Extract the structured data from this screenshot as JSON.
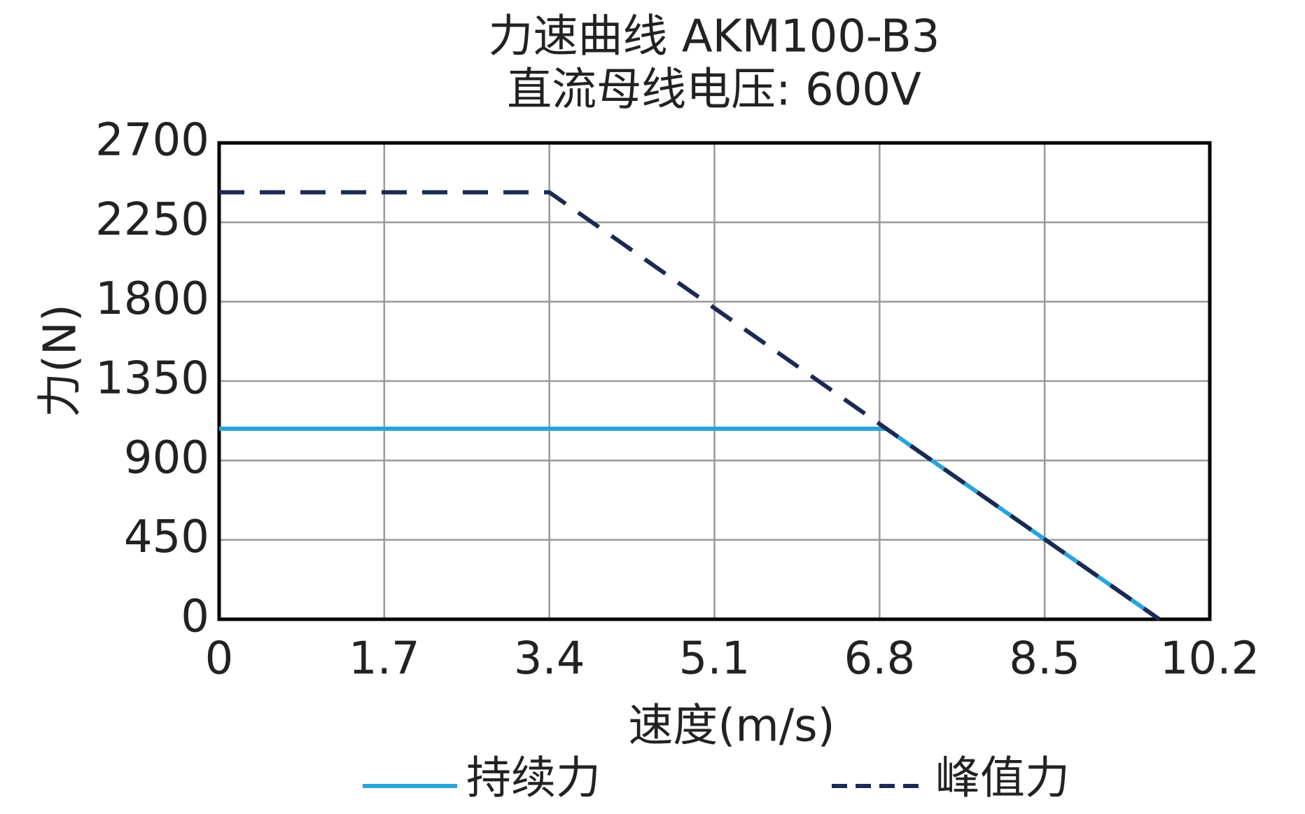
{
  "chart_data": {
    "type": "line",
    "title": "力速曲线 AKM100-B3",
    "subtitle": "直流母线电压: 600V",
    "x_label": "速度(m/s)",
    "y_label": "力(N)",
    "xlim": [
      0,
      10.2
    ],
    "xticks": [
      0,
      1.7,
      3.4,
      5.1,
      6.8,
      8.5,
      10.2
    ],
    "ylim": [
      0,
      2700
    ],
    "yticks": [
      0,
      450,
      900,
      1350,
      1800,
      2250,
      2700
    ],
    "grid": true,
    "series": [
      {
        "name": "持续力",
        "color": "#29a3dc",
        "line_style": "solid",
        "x": [
          0,
          6.87,
          9.68
        ],
        "values": [
          1080,
          1080,
          0
        ]
      },
      {
        "name": "峰值力",
        "color": "#1a2a52",
        "line_style": "dashed",
        "x": [
          0,
          3.4,
          6.87,
          9.68
        ],
        "values": [
          2420,
          2420,
          1080,
          0
        ]
      }
    ]
  }
}
